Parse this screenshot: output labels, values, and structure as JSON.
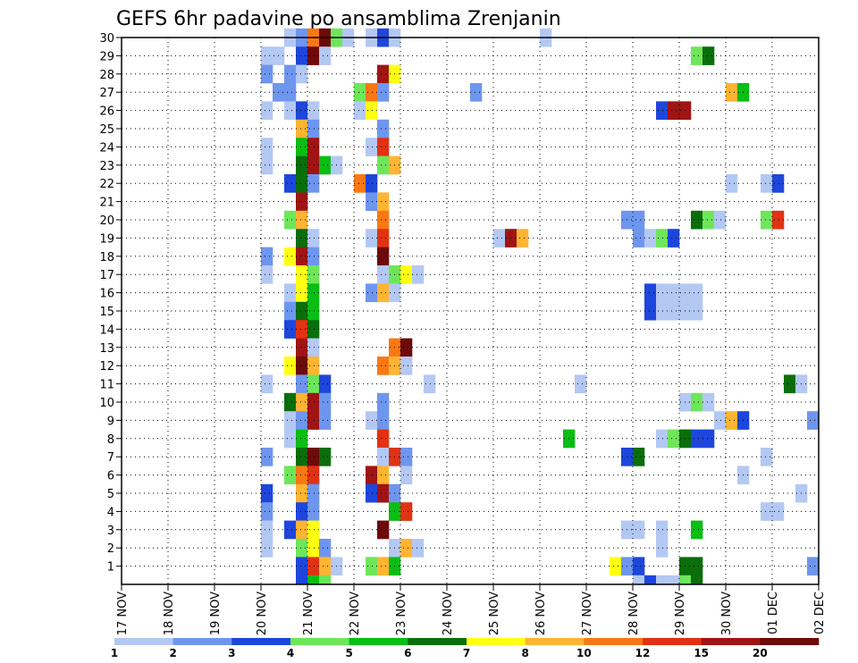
{
  "chart_data": {
    "type": "heatmap",
    "title": "GEFS 6hr padavine po ansamblima Zrenjanin",
    "xlabel": "",
    "ylabel": "",
    "x_ticks": [
      "17 NOV",
      "18 NOV",
      "19 NOV",
      "20 NOV",
      "21 NOV",
      "22 NOV",
      "23 NOV",
      "24 NOV",
      "25 NOV",
      "26 NOV",
      "27 NOV",
      "28 NOV",
      "29 NOV",
      "30 NOV",
      "01 DEC",
      "02 DEC"
    ],
    "y_ticks": [
      "1",
      "2",
      "3",
      "4",
      "5",
      "6",
      "7",
      "8",
      "9",
      "10",
      "11",
      "12",
      "13",
      "14",
      "15",
      "16",
      "17",
      "18",
      "19",
      "20",
      "21",
      "22",
      "23",
      "24",
      "25",
      "26",
      "27",
      "28",
      "29",
      "30"
    ],
    "grid": true,
    "colorbar": {
      "labels": [
        "1",
        "2",
        "3",
        "4",
        "5",
        "6",
        "7",
        "8",
        "10",
        "12",
        "15",
        "20"
      ],
      "colors": [
        "#b4c8f4",
        "#6e96ee",
        "#1e46dc",
        "#6ee65a",
        "#0abe14",
        "#0a6e0a",
        "#ffff14",
        "#ffb432",
        "#fa7814",
        "#e13214",
        "#a01414",
        "#6e0a0a"
      ]
    },
    "cells": [
      {
        "m": 30,
        "d": 3.5,
        "c": 1
      },
      {
        "m": 30,
        "d": 3.75,
        "c": 2
      },
      {
        "m": 30,
        "d": 4.0,
        "c": 9
      },
      {
        "m": 30,
        "d": 4.25,
        "c": 12
      },
      {
        "m": 30,
        "d": 4.5,
        "c": 4
      },
      {
        "m": 30,
        "d": 4.75,
        "c": 1
      },
      {
        "m": 30,
        "d": 5.25,
        "c": 1
      },
      {
        "m": 30,
        "d": 5.5,
        "c": 3
      },
      {
        "m": 30,
        "d": 5.75,
        "c": 1
      },
      {
        "m": 30,
        "d": 9.0,
        "c": 1
      },
      {
        "m": 29,
        "d": 3.0,
        "c": 1
      },
      {
        "m": 29,
        "d": 3.25,
        "c": 1
      },
      {
        "m": 29,
        "d": 3.75,
        "c": 3
      },
      {
        "m": 29,
        "d": 4.0,
        "c": 12
      },
      {
        "m": 29,
        "d": 4.25,
        "c": 1
      },
      {
        "m": 29,
        "d": 12.25,
        "c": 4
      },
      {
        "m": 29,
        "d": 12.5,
        "c": 6
      },
      {
        "m": 28,
        "d": 3.0,
        "c": 2
      },
      {
        "m": 28,
        "d": 3.5,
        "c": 2
      },
      {
        "m": 28,
        "d": 3.75,
        "c": 1
      },
      {
        "m": 28,
        "d": 5.5,
        "c": 11
      },
      {
        "m": 28,
        "d": 5.75,
        "c": 7
      },
      {
        "m": 27,
        "d": 3.25,
        "c": 2
      },
      {
        "m": 27,
        "d": 3.5,
        "c": 2
      },
      {
        "m": 27,
        "d": 5.0,
        "c": 4
      },
      {
        "m": 27,
        "d": 5.25,
        "c": 9
      },
      {
        "m": 27,
        "d": 5.5,
        "c": 2
      },
      {
        "m": 27,
        "d": 7.5,
        "c": 2
      },
      {
        "m": 27,
        "d": 13.0,
        "c": 8
      },
      {
        "m": 27,
        "d": 13.25,
        "c": 5
      },
      {
        "m": 26,
        "d": 3.0,
        "c": 1
      },
      {
        "m": 26,
        "d": 3.5,
        "c": 1
      },
      {
        "m": 26,
        "d": 3.75,
        "c": 3
      },
      {
        "m": 26,
        "d": 4.0,
        "c": 1
      },
      {
        "m": 26,
        "d": 5.0,
        "c": 1
      },
      {
        "m": 26,
        "d": 5.25,
        "c": 7
      },
      {
        "m": 26,
        "d": 11.5,
        "c": 3
      },
      {
        "m": 26,
        "d": 11.75,
        "c": 11
      },
      {
        "m": 26,
        "d": 12.0,
        "c": 11
      },
      {
        "m": 25,
        "d": 3.75,
        "c": 8
      },
      {
        "m": 25,
        "d": 4.0,
        "c": 2
      },
      {
        "m": 25,
        "d": 5.5,
        "c": 2
      },
      {
        "m": 24,
        "d": 3.0,
        "c": 1
      },
      {
        "m": 24,
        "d": 3.75,
        "c": 5
      },
      {
        "m": 24,
        "d": 4.0,
        "c": 11
      },
      {
        "m": 24,
        "d": 5.25,
        "c": 1
      },
      {
        "m": 24,
        "d": 5.5,
        "c": 10
      },
      {
        "m": 23,
        "d": 3.0,
        "c": 1
      },
      {
        "m": 23,
        "d": 3.75,
        "c": 6
      },
      {
        "m": 23,
        "d": 4.0,
        "c": 11
      },
      {
        "m": 23,
        "d": 4.25,
        "c": 5
      },
      {
        "m": 23,
        "d": 4.5,
        "c": 1
      },
      {
        "m": 23,
        "d": 5.5,
        "c": 4
      },
      {
        "m": 23,
        "d": 5.75,
        "c": 8
      },
      {
        "m": 22,
        "d": 3.5,
        "c": 3
      },
      {
        "m": 22,
        "d": 3.75,
        "c": 6
      },
      {
        "m": 22,
        "d": 4.0,
        "c": 2
      },
      {
        "m": 22,
        "d": 5.0,
        "c": 9
      },
      {
        "m": 22,
        "d": 5.25,
        "c": 3
      },
      {
        "m": 22,
        "d": 13.0,
        "c": 1
      },
      {
        "m": 22,
        "d": 13.75,
        "c": 1
      },
      {
        "m": 22,
        "d": 14.0,
        "c": 3
      },
      {
        "m": 21,
        "d": 3.75,
        "c": 11
      },
      {
        "m": 21,
        "d": 5.25,
        "c": 2
      },
      {
        "m": 21,
        "d": 5.5,
        "c": 8
      },
      {
        "m": 20,
        "d": 3.5,
        "c": 4
      },
      {
        "m": 20,
        "d": 3.75,
        "c": 8
      },
      {
        "m": 20,
        "d": 5.5,
        "c": 9
      },
      {
        "m": 20,
        "d": 10.75,
        "c": 2
      },
      {
        "m": 20,
        "d": 11.0,
        "c": 2
      },
      {
        "m": 20,
        "d": 12.25,
        "c": 6
      },
      {
        "m": 20,
        "d": 12.5,
        "c": 4
      },
      {
        "m": 20,
        "d": 12.75,
        "c": 1
      },
      {
        "m": 20,
        "d": 13.75,
        "c": 4
      },
      {
        "m": 20,
        "d": 14.0,
        "c": 10
      },
      {
        "m": 19,
        "d": 3.75,
        "c": 6
      },
      {
        "m": 19,
        "d": 4.0,
        "c": 1
      },
      {
        "m": 19,
        "d": 5.25,
        "c": 1
      },
      {
        "m": 19,
        "d": 5.5,
        "c": 10
      },
      {
        "m": 19,
        "d": 8.0,
        "c": 1
      },
      {
        "m": 19,
        "d": 8.25,
        "c": 11
      },
      {
        "m": 19,
        "d": 8.5,
        "c": 8
      },
      {
        "m": 19,
        "d": 11.0,
        "c": 2
      },
      {
        "m": 19,
        "d": 11.25,
        "c": 1
      },
      {
        "m": 19,
        "d": 11.5,
        "c": 4
      },
      {
        "m": 19,
        "d": 11.75,
        "c": 3
      },
      {
        "m": 18,
        "d": 3.0,
        "c": 2
      },
      {
        "m": 18,
        "d": 3.5,
        "c": 7
      },
      {
        "m": 18,
        "d": 3.75,
        "c": 11
      },
      {
        "m": 18,
        "d": 4.0,
        "c": 2
      },
      {
        "m": 18,
        "d": 5.5,
        "c": 12
      },
      {
        "m": 17,
        "d": 3.0,
        "c": 1
      },
      {
        "m": 17,
        "d": 3.75,
        "c": 7
      },
      {
        "m": 17,
        "d": 4.0,
        "c": 4
      },
      {
        "m": 17,
        "d": 5.5,
        "c": 1
      },
      {
        "m": 17,
        "d": 5.75,
        "c": 4
      },
      {
        "m": 17,
        "d": 6.0,
        "c": 7
      },
      {
        "m": 17,
        "d": 6.25,
        "c": 1
      },
      {
        "m": 16,
        "d": 3.5,
        "c": 1
      },
      {
        "m": 16,
        "d": 3.75,
        "c": 7
      },
      {
        "m": 16,
        "d": 4.0,
        "c": 5
      },
      {
        "m": 16,
        "d": 5.25,
        "c": 2
      },
      {
        "m": 16,
        "d": 5.5,
        "c": 8
      },
      {
        "m": 16,
        "d": 5.75,
        "c": 1
      },
      {
        "m": 16,
        "d": 11.25,
        "c": 3
      },
      {
        "m": 16,
        "d": 11.5,
        "c": 1
      },
      {
        "m": 16,
        "d": 11.75,
        "c": 1
      },
      {
        "m": 16,
        "d": 12.0,
        "c": 1
      },
      {
        "m": 16,
        "d": 12.25,
        "c": 1
      },
      {
        "m": 15,
        "d": 3.5,
        "c": 2
      },
      {
        "m": 15,
        "d": 3.75,
        "c": 6
      },
      {
        "m": 15,
        "d": 4.0,
        "c": 5
      },
      {
        "m": 15,
        "d": 11.25,
        "c": 3
      },
      {
        "m": 15,
        "d": 11.5,
        "c": 1
      },
      {
        "m": 15,
        "d": 11.75,
        "c": 1
      },
      {
        "m": 15,
        "d": 12.0,
        "c": 1
      },
      {
        "m": 15,
        "d": 12.25,
        "c": 1
      },
      {
        "m": 14,
        "d": 3.5,
        "c": 3
      },
      {
        "m": 14,
        "d": 3.75,
        "c": 10
      },
      {
        "m": 14,
        "d": 4.0,
        "c": 6
      },
      {
        "m": 13,
        "d": 3.75,
        "c": 11
      },
      {
        "m": 13,
        "d": 4.0,
        "c": 1
      },
      {
        "m": 13,
        "d": 5.75,
        "c": 9
      },
      {
        "m": 13,
        "d": 6.0,
        "c": 12
      },
      {
        "m": 12,
        "d": 3.5,
        "c": 7
      },
      {
        "m": 12,
        "d": 3.75,
        "c": 12
      },
      {
        "m": 12,
        "d": 4.0,
        "c": 8
      },
      {
        "m": 12,
        "d": 5.5,
        "c": 9
      },
      {
        "m": 12,
        "d": 5.75,
        "c": 8
      },
      {
        "m": 12,
        "d": 6.0,
        "c": 1
      },
      {
        "m": 11,
        "d": 3.0,
        "c": 1
      },
      {
        "m": 11,
        "d": 3.75,
        "c": 2
      },
      {
        "m": 11,
        "d": 4.0,
        "c": 4
      },
      {
        "m": 11,
        "d": 4.25,
        "c": 3
      },
      {
        "m": 11,
        "d": 6.5,
        "c": 1
      },
      {
        "m": 11,
        "d": 9.75,
        "c": 1
      },
      {
        "m": 11,
        "d": 14.25,
        "c": 6
      },
      {
        "m": 11,
        "d": 14.5,
        "c": 1
      },
      {
        "m": 10,
        "d": 3.5,
        "c": 6
      },
      {
        "m": 10,
        "d": 3.75,
        "c": 8
      },
      {
        "m": 10,
        "d": 4.0,
        "c": 11
      },
      {
        "m": 10,
        "d": 4.25,
        "c": 2
      },
      {
        "m": 10,
        "d": 5.5,
        "c": 2
      },
      {
        "m": 10,
        "d": 12.0,
        "c": 1
      },
      {
        "m": 10,
        "d": 12.25,
        "c": 4
      },
      {
        "m": 10,
        "d": 12.5,
        "c": 1
      },
      {
        "m": 9,
        "d": 3.5,
        "c": 1
      },
      {
        "m": 9,
        "d": 3.75,
        "c": 2
      },
      {
        "m": 9,
        "d": 4.0,
        "c": 11
      },
      {
        "m": 9,
        "d": 4.25,
        "c": 2
      },
      {
        "m": 9,
        "d": 5.25,
        "c": 1
      },
      {
        "m": 9,
        "d": 5.5,
        "c": 2
      },
      {
        "m": 9,
        "d": 12.75,
        "c": 1
      },
      {
        "m": 9,
        "d": 13.0,
        "c": 8
      },
      {
        "m": 9,
        "d": 13.25,
        "c": 3
      },
      {
        "m": 9,
        "d": 14.75,
        "c": 2
      },
      {
        "m": 8,
        "d": 3.5,
        "c": 1
      },
      {
        "m": 8,
        "d": 3.75,
        "c": 5
      },
      {
        "m": 8,
        "d": 5.5,
        "c": 10
      },
      {
        "m": 8,
        "d": 9.5,
        "c": 5
      },
      {
        "m": 8,
        "d": 11.5,
        "c": 1
      },
      {
        "m": 8,
        "d": 11.75,
        "c": 4
      },
      {
        "m": 8,
        "d": 12.0,
        "c": 6
      },
      {
        "m": 8,
        "d": 12.25,
        "c": 3
      },
      {
        "m": 8,
        "d": 12.5,
        "c": 3
      },
      {
        "m": 7,
        "d": 3.0,
        "c": 2
      },
      {
        "m": 7,
        "d": 3.75,
        "c": 6
      },
      {
        "m": 7,
        "d": 4.0,
        "c": 12
      },
      {
        "m": 7,
        "d": 4.25,
        "c": 6
      },
      {
        "m": 7,
        "d": 5.5,
        "c": 1
      },
      {
        "m": 7,
        "d": 5.75,
        "c": 10
      },
      {
        "m": 7,
        "d": 6.0,
        "c": 2
      },
      {
        "m": 7,
        "d": 10.75,
        "c": 3
      },
      {
        "m": 7,
        "d": 11.0,
        "c": 6
      },
      {
        "m": 7,
        "d": 13.75,
        "c": 1
      },
      {
        "m": 6,
        "d": 3.5,
        "c": 4
      },
      {
        "m": 6,
        "d": 3.75,
        "c": 9
      },
      {
        "m": 6,
        "d": 4.0,
        "c": 10
      },
      {
        "m": 6,
        "d": 5.25,
        "c": 11
      },
      {
        "m": 6,
        "d": 5.5,
        "c": 8
      },
      {
        "m": 6,
        "d": 6.0,
        "c": 1
      },
      {
        "m": 6,
        "d": 13.25,
        "c": 1
      },
      {
        "m": 5,
        "d": 3.0,
        "c": 3
      },
      {
        "m": 5,
        "d": 3.75,
        "c": 8
      },
      {
        "m": 5,
        "d": 4.0,
        "c": 2
      },
      {
        "m": 5,
        "d": 5.25,
        "c": 3
      },
      {
        "m": 5,
        "d": 5.5,
        "c": 11
      },
      {
        "m": 5,
        "d": 5.75,
        "c": 2
      },
      {
        "m": 5,
        "d": 14.5,
        "c": 1
      },
      {
        "m": 4,
        "d": 3.0,
        "c": 2
      },
      {
        "m": 4,
        "d": 3.75,
        "c": 3
      },
      {
        "m": 4,
        "d": 4.0,
        "c": 2
      },
      {
        "m": 4,
        "d": 5.75,
        "c": 5
      },
      {
        "m": 4,
        "d": 6.0,
        "c": 10
      },
      {
        "m": 4,
        "d": 13.75,
        "c": 1
      },
      {
        "m": 4,
        "d": 14.0,
        "c": 1
      },
      {
        "m": 3,
        "d": 3.0,
        "c": 1
      },
      {
        "m": 3,
        "d": 3.5,
        "c": 3
      },
      {
        "m": 3,
        "d": 3.75,
        "c": 8
      },
      {
        "m": 3,
        "d": 4.0,
        "c": 7
      },
      {
        "m": 3,
        "d": 5.5,
        "c": 12
      },
      {
        "m": 3,
        "d": 10.75,
        "c": 1
      },
      {
        "m": 3,
        "d": 11.0,
        "c": 1
      },
      {
        "m": 3,
        "d": 11.5,
        "c": 1
      },
      {
        "m": 3,
        "d": 12.25,
        "c": 5
      },
      {
        "m": 2,
        "d": 3.0,
        "c": 1
      },
      {
        "m": 2,
        "d": 3.75,
        "c": 4
      },
      {
        "m": 2,
        "d": 4.0,
        "c": 7
      },
      {
        "m": 2,
        "d": 4.25,
        "c": 2
      },
      {
        "m": 2,
        "d": 5.75,
        "c": 1
      },
      {
        "m": 2,
        "d": 6.0,
        "c": 8
      },
      {
        "m": 2,
        "d": 6.25,
        "c": 1
      },
      {
        "m": 2,
        "d": 11.5,
        "c": 1
      },
      {
        "m": 1,
        "d": 3.75,
        "c": 3
      },
      {
        "m": 1,
        "d": 4.0,
        "c": 10
      },
      {
        "m": 1,
        "d": 4.25,
        "c": 8
      },
      {
        "m": 1,
        "d": 4.5,
        "c": 1
      },
      {
        "m": 1,
        "d": 5.25,
        "c": 4
      },
      {
        "m": 1,
        "d": 5.5,
        "c": 8
      },
      {
        "m": 1,
        "d": 5.75,
        "c": 5
      },
      {
        "m": 1,
        "d": 10.5,
        "c": 7
      },
      {
        "m": 1,
        "d": 10.75,
        "c": 2
      },
      {
        "m": 1,
        "d": 11.0,
        "c": 3
      },
      {
        "m": 1,
        "d": 12.0,
        "c": 6
      },
      {
        "m": 1,
        "d": 12.25,
        "c": 6
      },
      {
        "m": 1,
        "d": 14.75,
        "c": 2
      },
      {
        "m": 0,
        "d": 3.75,
        "c": 3
      },
      {
        "m": 0,
        "d": 4.0,
        "c": 5
      },
      {
        "m": 0,
        "d": 4.25,
        "c": 4
      },
      {
        "m": 0,
        "d": 11.0,
        "c": 1
      },
      {
        "m": 0,
        "d": 11.25,
        "c": 3
      },
      {
        "m": 0,
        "d": 11.5,
        "c": 1
      },
      {
        "m": 0,
        "d": 11.75,
        "c": 1
      },
      {
        "m": 0,
        "d": 12.0,
        "c": 4
      },
      {
        "m": 0,
        "d": 12.25,
        "c": 6
      }
    ]
  }
}
